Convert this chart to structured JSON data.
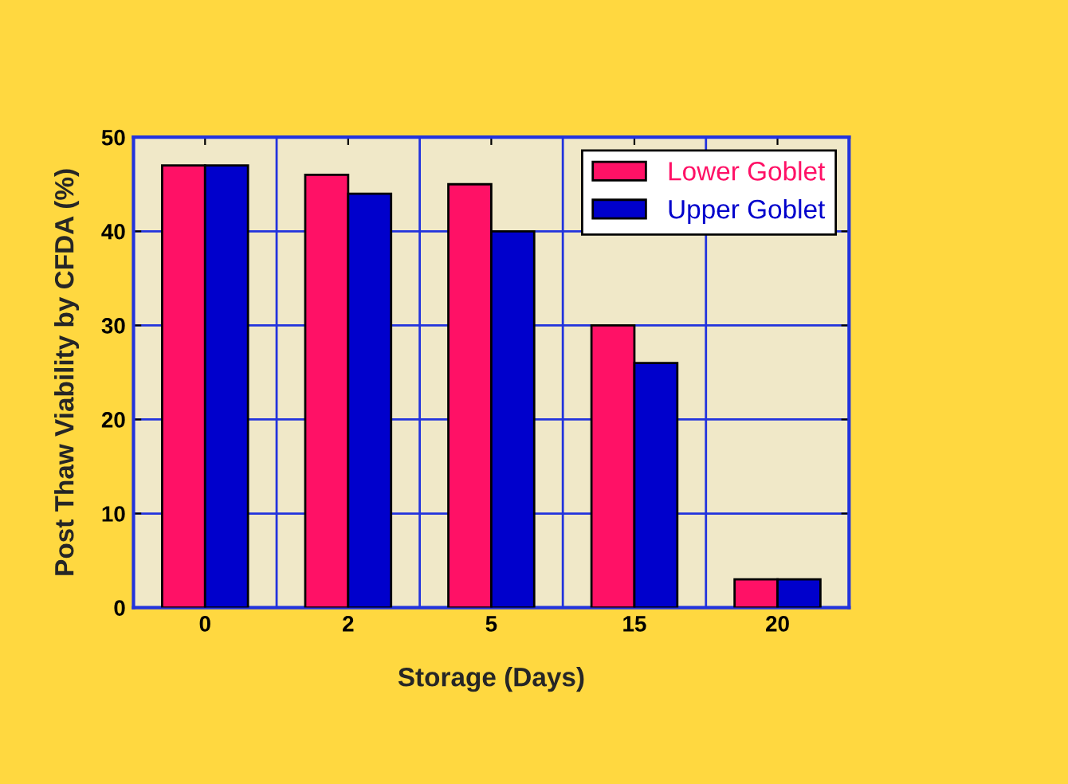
{
  "chart_data": {
    "type": "bar",
    "xlabel": "Storage (Days)",
    "ylabel": "Post Thaw Viability by CFDA (%)",
    "categories": [
      "0",
      "2",
      "5",
      "15",
      "20"
    ],
    "series": [
      {
        "name": "Lower Goblet",
        "color": "#ff1166",
        "values": [
          47,
          46,
          45,
          30,
          3
        ]
      },
      {
        "name": "Upper Goblet",
        "color": "#0000cc",
        "values": [
          47,
          44,
          40,
          26,
          3
        ]
      }
    ],
    "ylim": [
      0,
      50
    ],
    "yticks": [
      0,
      10,
      20,
      30,
      40,
      50
    ],
    "grid": true,
    "legend": "top right"
  }
}
